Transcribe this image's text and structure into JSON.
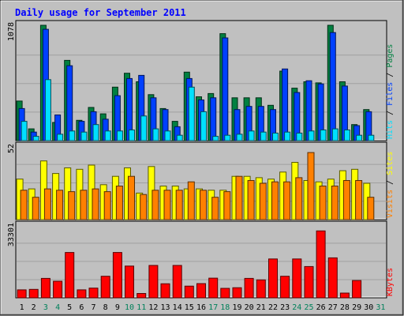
{
  "chart_data": {
    "type": "bar",
    "title": "Daily usage for September 2011",
    "days": [
      "1",
      "2",
      "3",
      "4",
      "5",
      "6",
      "7",
      "8",
      "9",
      "10",
      "11",
      "12",
      "13",
      "14",
      "15",
      "16",
      "17",
      "18",
      "19",
      "20",
      "21",
      "22",
      "23",
      "24",
      "25",
      "26",
      "27",
      "28",
      "29",
      "30",
      "31"
    ],
    "weekend_days": [
      "3",
      "4",
      "10",
      "11",
      "17",
      "18",
      "24",
      "25",
      "31"
    ],
    "panels": [
      {
        "id": "hits-files-pages",
        "ymax_label": "1078",
        "ymax": 1078,
        "side_label": [
          "Pages",
          "Files",
          "Hits"
        ],
        "series": [
          {
            "name": "Hits",
            "color": "#008040",
            "values": [
              370,
              110,
              1078,
              170,
              750,
              190,
              310,
              250,
              500,
              630,
              550,
              430,
              300,
              180,
              640,
              410,
              440,
              1000,
              400,
              400,
              400,
              330,
              650,
              490,
              550,
              540,
              1078,
              550,
              150,
              290,
              0
            ]
          },
          {
            "name": "Files",
            "color": "#0040ff",
            "values": [
              300,
              80,
              1040,
              240,
              700,
              180,
              270,
              200,
              420,
              580,
              610,
              400,
              290,
              130,
              580,
              380,
              400,
              960,
              290,
              320,
              320,
              290,
              670,
              450,
              560,
              530,
              1010,
              510,
              140,
              270,
              0
            ]
          },
          {
            "name": "Pages",
            "color": "#00e0ff",
            "values": [
              180,
              40,
              570,
              60,
              90,
              80,
              150,
              90,
              90,
              100,
              230,
              110,
              90,
              50,
              500,
              270,
              40,
              50,
              60,
              90,
              80,
              70,
              80,
              70,
              90,
              100,
              110,
              100,
              50,
              50,
              0
            ]
          }
        ]
      },
      {
        "id": "visits-sites",
        "ymax_label": "52",
        "ymax": 52,
        "side_label": [
          "Sites",
          "Visits"
        ],
        "series": [
          {
            "name": "Visits",
            "color": "#ffff00",
            "values": [
              29,
              22,
              42,
              33,
              37,
              36,
              39,
              25,
              31,
              37,
              19,
              38,
              24,
              24,
              22,
              22,
              21,
              21,
              31,
              31,
              30,
              29,
              34,
              41,
              28,
              27,
              29,
              35,
              36,
              26,
              0
            ]
          },
          {
            "name": "Sites",
            "color": "#ff8000",
            "values": [
              21,
              16,
              22,
              21,
              20,
              21,
              22,
              20,
              24,
              31,
              18,
              21,
              21,
              21,
              27,
              21,
              16,
              20,
              31,
              28,
              26,
              27,
              27,
              30,
              48,
              24,
              24,
              28,
              28,
              16,
              0
            ]
          }
        ]
      },
      {
        "id": "kbytes",
        "ymax_label": "33301",
        "ymax": 33301,
        "side_label": [
          "KBytes"
        ],
        "series": [
          {
            "name": "KBytes",
            "color": "#ff0000",
            "values": [
              3700,
              3900,
              9000,
              7700,
              21000,
              3700,
              4500,
              10000,
              21000,
              14700,
              2000,
              15000,
              6500,
              15000,
              5400,
              6600,
              9100,
              4400,
              4700,
              9000,
              8300,
              18000,
              10000,
              18000,
              14500,
              31000,
              18500,
              2200,
              8000,
              0,
              0
            ]
          }
        ]
      }
    ]
  }
}
